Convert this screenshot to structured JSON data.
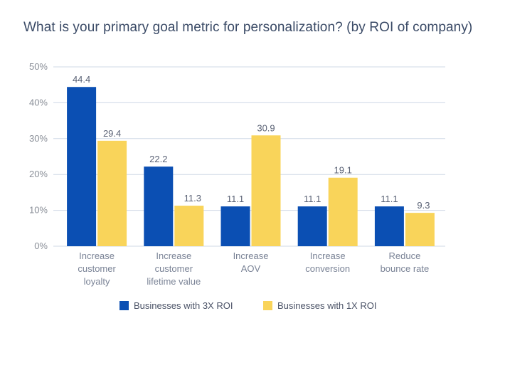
{
  "title": "What is your primary goal metric for personalization? (by ROI of company)",
  "chart_data": {
    "type": "bar",
    "categories": [
      [
        "Increase",
        "customer",
        "loyalty"
      ],
      [
        "Increase",
        "customer",
        "lifetime value"
      ],
      [
        "Increase",
        "AOV"
      ],
      [
        "Increase",
        "conversion"
      ],
      [
        "Reduce",
        "bounce rate"
      ]
    ],
    "series": [
      {
        "name": "Businesses with 3X ROI",
        "color": "#0b4fb3",
        "values": [
          44.4,
          22.2,
          11.1,
          11.1,
          11.1
        ],
        "labels": [
          "44.4",
          "22.2",
          "11.1",
          "11.1",
          "11.1"
        ]
      },
      {
        "name": "Businesses with 1X ROI",
        "color": "#f9d45a",
        "values": [
          29.4,
          11.3,
          30.9,
          19.1,
          9.3
        ],
        "labels": [
          "29.4",
          "11.3",
          "30.9",
          "19.1",
          "9.3"
        ]
      }
    ],
    "ylim": [
      0,
      50
    ],
    "yticks": [
      "0%",
      "10%",
      "20%",
      "30%",
      "40%",
      "50%"
    ],
    "grid": true,
    "legend_position": "bottom"
  }
}
